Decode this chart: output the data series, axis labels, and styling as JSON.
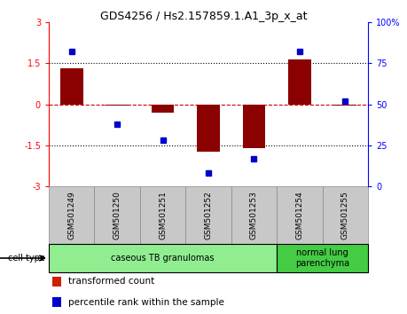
{
  "title": "GDS4256 / Hs2.157859.1.A1_3p_x_at",
  "samples": [
    "GSM501249",
    "GSM501250",
    "GSM501251",
    "GSM501252",
    "GSM501253",
    "GSM501254",
    "GSM501255"
  ],
  "bar_values": [
    1.3,
    -0.05,
    -0.3,
    -1.75,
    -1.6,
    1.65,
    -0.05
  ],
  "dot_values": [
    82,
    38,
    28,
    8,
    17,
    82,
    52
  ],
  "ylim_left": [
    -3,
    3
  ],
  "ylim_right": [
    0,
    100
  ],
  "yticks_left": [
    -3,
    -1.5,
    0,
    1.5,
    3
  ],
  "ytick_labels_left": [
    "-3",
    "-1.5",
    "0",
    "1.5",
    "3"
  ],
  "yticks_right": [
    0,
    25,
    50,
    75,
    100
  ],
  "ytick_labels_right": [
    "0",
    "25",
    "50",
    "75",
    "100%"
  ],
  "hlines": [
    1.5,
    -1.5
  ],
  "hline_zero_color": "#cc0000",
  "bar_color": "#8b0000",
  "dot_color": "#0000cc",
  "cell_type_groups": [
    {
      "label": "caseous TB granulomas",
      "start": 0,
      "end": 5,
      "color": "#90ee90"
    },
    {
      "label": "normal lung\nparenchyma",
      "start": 5,
      "end": 7,
      "color": "#44cc44"
    }
  ],
  "cell_type_label": "cell type",
  "legend_items": [
    {
      "color": "#cc2200",
      "label": "transformed count"
    },
    {
      "color": "#0000cc",
      "label": "percentile rank within the sample"
    }
  ],
  "background_color": "#ffffff",
  "sample_box_color": "#c8c8c8",
  "sample_box_edge": "#888888",
  "bar_width": 0.5
}
